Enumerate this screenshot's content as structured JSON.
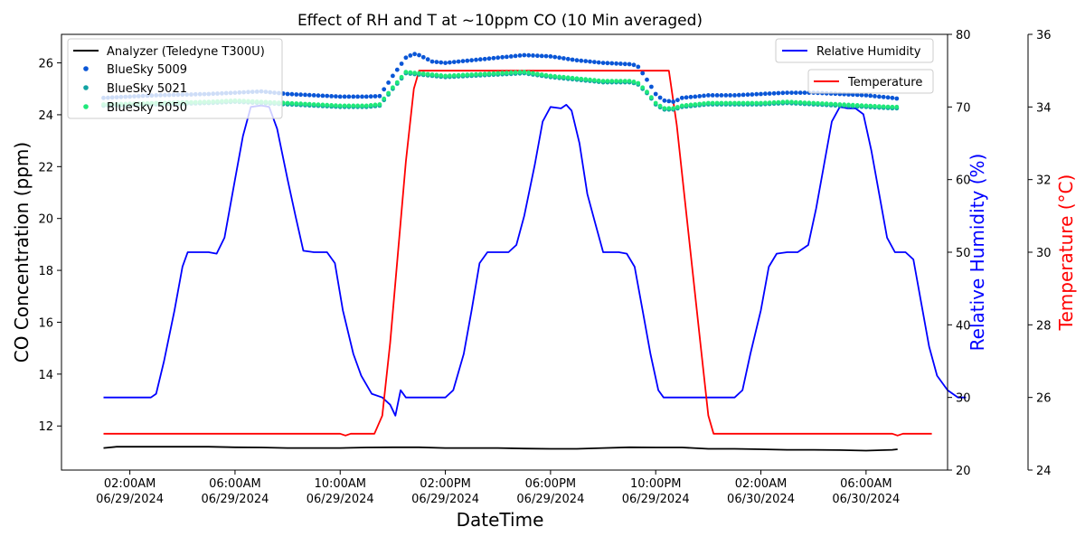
{
  "chart_data": {
    "type": "line",
    "title": "Effect of RH and T at ~10ppm CO (10 Min averaged)",
    "xlabel": "DateTime",
    "ylabel_left": "CO Concentration (ppm)",
    "ylabel_right": "Relative Humidity (%)",
    "ylabel_far_right": "Temperature (°C)",
    "x_ticks": [
      {
        "h": 2,
        "l1": "02:00AM",
        "l2": "06/29/2024"
      },
      {
        "h": 6,
        "l1": "06:00AM",
        "l2": "06/29/2024"
      },
      {
        "h": 10,
        "l1": "10:00AM",
        "l2": "06/29/2024"
      },
      {
        "h": 14,
        "l1": "02:00PM",
        "l2": "06/29/2024"
      },
      {
        "h": 18,
        "l1": "06:00PM",
        "l2": "06/29/2024"
      },
      {
        "h": 22,
        "l1": "10:00PM",
        "l2": "06/29/2024"
      },
      {
        "h": 26,
        "l1": "02:00AM",
        "l2": "06/30/2024"
      },
      {
        "h": 30,
        "l1": "06:00AM",
        "l2": "06/30/2024"
      }
    ],
    "x_start": "06/29/2024 01:00AM",
    "x_end": "06/30/2024 07:10AM",
    "ylim_left": [
      10.3,
      27.1
    ],
    "ylim_right": [
      20,
      80
    ],
    "ylim_far_right": [
      24,
      36
    ],
    "yticks_left": [
      12,
      14,
      16,
      18,
      20,
      22,
      24,
      26
    ],
    "yticks_right": [
      20,
      30,
      40,
      50,
      60,
      70,
      80
    ],
    "yticks_far_right": [
      24,
      26,
      28,
      30,
      32,
      34,
      36
    ],
    "legend_left": {
      "placement": "upper-left",
      "entries": [
        {
          "name": "Analyzer (Teledyne T300U)",
          "style": "line",
          "color": "#000000"
        },
        {
          "name": "BlueSky 5009",
          "style": "dot",
          "color": "#0a56d6"
        },
        {
          "name": "BlueSky 5021",
          "style": "dot",
          "color": "#11a3a3"
        },
        {
          "name": "BlueSky 5050",
          "style": "dot",
          "color": "#1fe87a"
        }
      ]
    },
    "legend_rh": {
      "placement": "upper-right",
      "name": "Relative Humidity",
      "color": "#0000ff"
    },
    "legend_temp": {
      "placement": "upper-right",
      "name": "Temperature",
      "color": "#ff0000"
    },
    "series": [
      {
        "name": "Analyzer (Teledyne T300U)",
        "axis": "left",
        "color": "#000000",
        "style": "line",
        "points": [
          [
            1,
            11.15
          ],
          [
            1.5,
            11.2
          ],
          [
            2,
            11.2
          ],
          [
            3,
            11.2
          ],
          [
            4,
            11.2
          ],
          [
            5,
            11.2
          ],
          [
            6,
            11.18
          ],
          [
            7,
            11.17
          ],
          [
            8,
            11.15
          ],
          [
            9,
            11.15
          ],
          [
            10,
            11.15
          ],
          [
            11,
            11.17
          ],
          [
            12,
            11.18
          ],
          [
            13,
            11.18
          ],
          [
            14,
            11.15
          ],
          [
            15,
            11.15
          ],
          [
            16,
            11.15
          ],
          [
            17,
            11.13
          ],
          [
            18,
            11.12
          ],
          [
            19,
            11.12
          ],
          [
            20,
            11.15
          ],
          [
            21,
            11.18
          ],
          [
            22,
            11.17
          ],
          [
            23,
            11.17
          ],
          [
            24,
            11.12
          ],
          [
            25,
            11.12
          ],
          [
            26,
            11.1
          ],
          [
            27,
            11.08
          ],
          [
            28,
            11.08
          ],
          [
            29,
            11.07
          ],
          [
            30,
            11.05
          ],
          [
            31,
            11.08
          ],
          [
            31.2,
            11.1
          ]
        ]
      },
      {
        "name": "BlueSky 5009",
        "axis": "left",
        "color": "#0a56d6",
        "style": "dot",
        "points": [
          [
            1,
            24.65
          ],
          [
            3,
            24.75
          ],
          [
            5,
            24.8
          ],
          [
            6,
            24.85
          ],
          [
            7,
            24.9
          ],
          [
            8,
            24.8
          ],
          [
            9,
            24.75
          ],
          [
            10,
            24.7
          ],
          [
            11,
            24.7
          ],
          [
            11.5,
            24.72
          ],
          [
            12,
            25.5
          ],
          [
            12.5,
            26.2
          ],
          [
            12.8,
            26.35
          ],
          [
            13,
            26.3
          ],
          [
            13.5,
            26.05
          ],
          [
            14,
            26.0
          ],
          [
            15,
            26.1
          ],
          [
            16,
            26.2
          ],
          [
            17,
            26.3
          ],
          [
            18,
            26.25
          ],
          [
            19,
            26.1
          ],
          [
            20,
            26.0
          ],
          [
            21,
            25.95
          ],
          [
            21.3,
            25.9
          ],
          [
            21.7,
            25.3
          ],
          [
            22,
            24.8
          ],
          [
            22.3,
            24.55
          ],
          [
            22.7,
            24.5
          ],
          [
            23,
            24.65
          ],
          [
            24,
            24.75
          ],
          [
            25,
            24.75
          ],
          [
            26,
            24.8
          ],
          [
            27,
            24.85
          ],
          [
            28,
            24.85
          ],
          [
            29,
            24.8
          ],
          [
            30,
            24.75
          ],
          [
            31,
            24.65
          ],
          [
            31.2,
            24.62
          ]
        ]
      },
      {
        "name": "BlueSky 5021",
        "axis": "left",
        "color": "#11a3a3",
        "style": "dot",
        "points": [
          [
            1,
            24.35
          ],
          [
            3,
            24.4
          ],
          [
            5,
            24.45
          ],
          [
            6,
            24.5
          ],
          [
            7,
            24.45
          ],
          [
            8,
            24.4
          ],
          [
            9,
            24.35
          ],
          [
            10,
            24.3
          ],
          [
            11,
            24.3
          ],
          [
            11.5,
            24.35
          ],
          [
            12,
            25.0
          ],
          [
            12.5,
            25.6
          ],
          [
            13,
            25.55
          ],
          [
            14,
            25.45
          ],
          [
            15,
            25.5
          ],
          [
            16,
            25.55
          ],
          [
            17,
            25.6
          ],
          [
            18,
            25.45
          ],
          [
            19,
            25.35
          ],
          [
            20,
            25.25
          ],
          [
            21,
            25.25
          ],
          [
            21.3,
            25.2
          ],
          [
            21.7,
            24.8
          ],
          [
            22,
            24.4
          ],
          [
            22.3,
            24.2
          ],
          [
            22.7,
            24.2
          ],
          [
            23,
            24.3
          ],
          [
            24,
            24.4
          ],
          [
            25,
            24.4
          ],
          [
            26,
            24.4
          ],
          [
            27,
            24.45
          ],
          [
            28,
            24.4
          ],
          [
            29,
            24.35
          ],
          [
            30,
            24.3
          ],
          [
            31,
            24.25
          ],
          [
            31.2,
            24.25
          ]
        ]
      },
      {
        "name": "BlueSky 5050",
        "axis": "left",
        "color": "#1fe87a",
        "style": "dot",
        "points": [
          [
            1,
            24.4
          ],
          [
            3,
            24.45
          ],
          [
            5,
            24.5
          ],
          [
            6,
            24.55
          ],
          [
            7,
            24.5
          ],
          [
            8,
            24.45
          ],
          [
            9,
            24.4
          ],
          [
            10,
            24.35
          ],
          [
            11,
            24.35
          ],
          [
            11.5,
            24.4
          ],
          [
            12,
            25.05
          ],
          [
            12.5,
            25.65
          ],
          [
            13,
            25.6
          ],
          [
            14,
            25.5
          ],
          [
            15,
            25.55
          ],
          [
            16,
            25.6
          ],
          [
            17,
            25.65
          ],
          [
            18,
            25.5
          ],
          [
            19,
            25.4
          ],
          [
            20,
            25.3
          ],
          [
            21,
            25.3
          ],
          [
            21.3,
            25.25
          ],
          [
            21.7,
            24.85
          ],
          [
            22,
            24.45
          ],
          [
            22.3,
            24.25
          ],
          [
            22.7,
            24.25
          ],
          [
            23,
            24.35
          ],
          [
            24,
            24.45
          ],
          [
            25,
            24.45
          ],
          [
            26,
            24.45
          ],
          [
            27,
            24.5
          ],
          [
            28,
            24.45
          ],
          [
            29,
            24.4
          ],
          [
            30,
            24.35
          ],
          [
            31,
            24.3
          ],
          [
            31.2,
            24.3
          ]
        ]
      },
      {
        "name": "Relative Humidity",
        "axis": "right",
        "color": "#0000ff",
        "style": "line",
        "points": [
          [
            1,
            30
          ],
          [
            2.5,
            30
          ],
          [
            2.8,
            30
          ],
          [
            3,
            30.5
          ],
          [
            3.3,
            35
          ],
          [
            3.7,
            42
          ],
          [
            4,
            48
          ],
          [
            4.2,
            50
          ],
          [
            5,
            50
          ],
          [
            5.3,
            49.8
          ],
          [
            5.6,
            52
          ],
          [
            6,
            60
          ],
          [
            6.3,
            66
          ],
          [
            6.6,
            70
          ],
          [
            7,
            70.2
          ],
          [
            7.3,
            70
          ],
          [
            7.6,
            67
          ],
          [
            8,
            60
          ],
          [
            8.3,
            55
          ],
          [
            8.6,
            50.2
          ],
          [
            9,
            50
          ],
          [
            9.5,
            50
          ],
          [
            9.8,
            48.5
          ],
          [
            10.1,
            42
          ],
          [
            10.5,
            36
          ],
          [
            10.8,
            33
          ],
          [
            11.2,
            30.5
          ],
          [
            11.6,
            30
          ],
          [
            11.9,
            29
          ],
          [
            12.1,
            27.5
          ],
          [
            12.3,
            31
          ],
          [
            12.5,
            30
          ],
          [
            13.5,
            30
          ],
          [
            14,
            30
          ],
          [
            14.3,
            31
          ],
          [
            14.7,
            36
          ],
          [
            15,
            42
          ],
          [
            15.3,
            48.5
          ],
          [
            15.6,
            50
          ],
          [
            16,
            50
          ],
          [
            16.4,
            50
          ],
          [
            16.7,
            51
          ],
          [
            17,
            55
          ],
          [
            17.4,
            62
          ],
          [
            17.7,
            68
          ],
          [
            18,
            70
          ],
          [
            18.4,
            69.8
          ],
          [
            18.6,
            70.3
          ],
          [
            18.8,
            69.5
          ],
          [
            19.1,
            65
          ],
          [
            19.4,
            58
          ],
          [
            19.7,
            54
          ],
          [
            20,
            50
          ],
          [
            20.3,
            50
          ],
          [
            20.6,
            50
          ],
          [
            20.9,
            49.8
          ],
          [
            21.2,
            48
          ],
          [
            21.5,
            42
          ],
          [
            21.8,
            36
          ],
          [
            22.1,
            31
          ],
          [
            22.3,
            30
          ],
          [
            23,
            30
          ],
          [
            25,
            30
          ],
          [
            25.3,
            31
          ],
          [
            25.6,
            36
          ],
          [
            26,
            42
          ],
          [
            26.3,
            48
          ],
          [
            26.6,
            49.8
          ],
          [
            27,
            50
          ],
          [
            27.4,
            50
          ],
          [
            27.8,
            51
          ],
          [
            28.1,
            56
          ],
          [
            28.4,
            62
          ],
          [
            28.7,
            68
          ],
          [
            29,
            70
          ],
          [
            29.3,
            69.8
          ],
          [
            29.6,
            69.8
          ],
          [
            29.9,
            69
          ],
          [
            30.2,
            64
          ],
          [
            30.5,
            58
          ],
          [
            30.8,
            52
          ],
          [
            31.1,
            50
          ],
          [
            31.5,
            50
          ],
          [
            31.8,
            49
          ],
          [
            32.1,
            43
          ],
          [
            32.4,
            37
          ],
          [
            32.7,
            33
          ],
          [
            33.1,
            31
          ],
          [
            33.5,
            30
          ],
          [
            33.8,
            30
          ]
        ]
      },
      {
        "name": "Temperature",
        "axis": "far_right",
        "color": "#ff0000",
        "style": "line",
        "points": [
          [
            1,
            25
          ],
          [
            9,
            25
          ],
          [
            10,
            25
          ],
          [
            10.2,
            24.95
          ],
          [
            10.4,
            25
          ],
          [
            11,
            25
          ],
          [
            11.3,
            25
          ],
          [
            11.6,
            25.5
          ],
          [
            11.9,
            27.5
          ],
          [
            12.2,
            30
          ],
          [
            12.5,
            32.5
          ],
          [
            12.8,
            34.5
          ],
          [
            13,
            35
          ],
          [
            14,
            35
          ],
          [
            16,
            35
          ],
          [
            18,
            35
          ],
          [
            20,
            35
          ],
          [
            21.5,
            35
          ],
          [
            22.5,
            35
          ],
          [
            22.8,
            33.5
          ],
          [
            23.1,
            31.5
          ],
          [
            23.4,
            29.5
          ],
          [
            23.7,
            27.5
          ],
          [
            24,
            25.5
          ],
          [
            24.2,
            25
          ],
          [
            26,
            25
          ],
          [
            28,
            25
          ],
          [
            30,
            25
          ],
          [
            31,
            25
          ],
          [
            31.2,
            24.95
          ],
          [
            31.4,
            25
          ],
          [
            32.5,
            25
          ]
        ]
      }
    ]
  }
}
